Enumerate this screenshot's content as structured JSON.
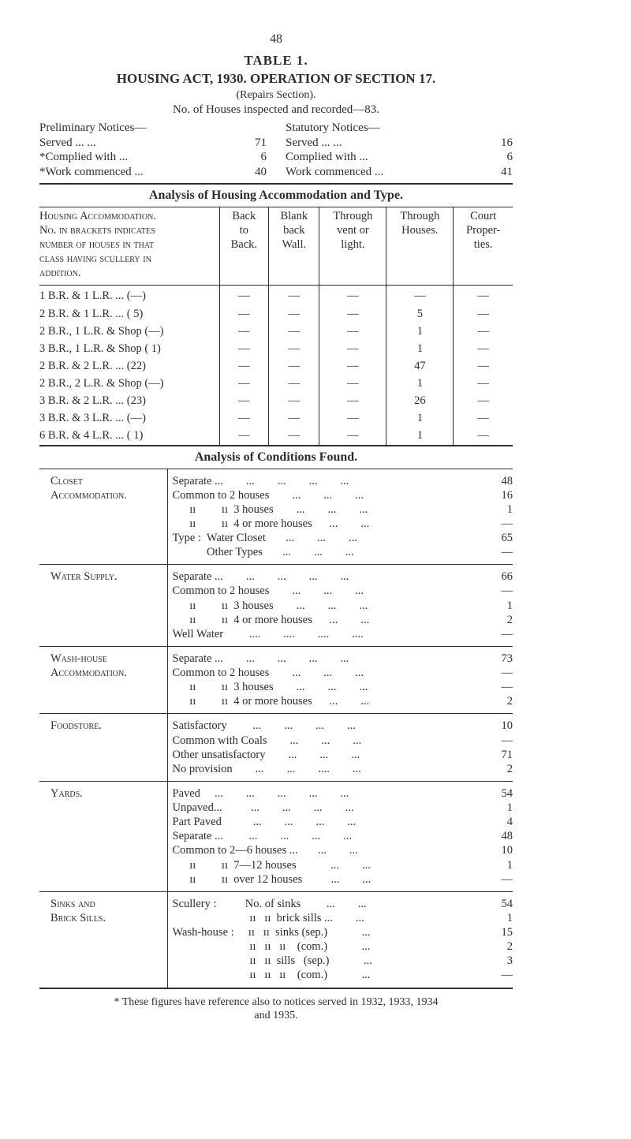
{
  "page_number": "48",
  "title_line1": "TABLE 1.",
  "title_line2": "HOUSING ACT, 1930.  OPERATION OF SECTION 17.",
  "title_line3": "(Repairs Section).",
  "title_line4": "No. of Houses inspected and recorded—83.",
  "prelim": {
    "header": "Preliminary Notices—",
    "rows": [
      {
        "label": "Served           ...      ...",
        "val": "71"
      },
      {
        "label": "*Complied with             ...",
        "val": "6"
      },
      {
        "label": "*Work commenced      ...",
        "val": "40"
      }
    ]
  },
  "stat": {
    "header": "Statutory Notices—",
    "rows": [
      {
        "label": "Served               ...      ...",
        "val": "16"
      },
      {
        "label": "Complied with               ...",
        "val": "6"
      },
      {
        "label": "Work commenced       ...",
        "val": "41"
      }
    ]
  },
  "analysis1_title": "Analysis of Housing Accommodation and Type.",
  "acc_header": {
    "c0": "Housing Accommodation.\nNo. in brackets indicates\nnumber of houses in that\nclass having scullery in\naddition.",
    "c1": "Back\nto\nBack.",
    "c2": "Blank\nback\nWall.",
    "c3": "Through\nvent or\nlight.",
    "c4": "Through\nHouses.",
    "c5": "Court\nProper-\nties."
  },
  "acc_rows": [
    {
      "c0": "1 B.R. & 1 L.R.     ...   (—)",
      "c1": "—",
      "c2": "—",
      "c3": "—",
      "c4": "—",
      "c5": "—"
    },
    {
      "c0": "2 B.R. & 1 L.R.     ...   ( 5)",
      "c1": "—",
      "c2": "—",
      "c3": "—",
      "c4": "5",
      "c5": "—"
    },
    {
      "c0": "2 B.R., 1 L.R. & Shop (—)",
      "c1": "—",
      "c2": "—",
      "c3": "—",
      "c4": "1",
      "c5": "—"
    },
    {
      "c0": "3 B.R., 1 L.R. & Shop ( 1)",
      "c1": "—",
      "c2": "—",
      "c3": "—",
      "c4": "1",
      "c5": "—"
    },
    {
      "c0": "2 B.R. & 2 L.R.     ...   (22)",
      "c1": "—",
      "c2": "—",
      "c3": "—",
      "c4": "47",
      "c5": "—"
    },
    {
      "c0": "2 B.R., 2 L.R. & Shop (—)",
      "c1": "—",
      "c2": "—",
      "c3": "—",
      "c4": "1",
      "c5": "—"
    },
    {
      "c0": "3 B.R. & 2 L.R.     ...   (23)",
      "c1": "—",
      "c2": "—",
      "c3": "—",
      "c4": "26",
      "c5": "—"
    },
    {
      "c0": "3 B.R. & 3 L.R.    ...   (—)",
      "c1": "—",
      "c2": "—",
      "c3": "—",
      "c4": "1",
      "c5": "—"
    },
    {
      "c0": "6 B.R. & 4 L.R.     ...   ( 1)",
      "c1": "—",
      "c2": "—",
      "c3": "—",
      "c4": "1",
      "c5": "—"
    }
  ],
  "analysis2_title": "Analysis of Conditions Found.",
  "cond": [
    {
      "label": "Closet\nAccommodation.",
      "lines": [
        {
          "t": "Separate ...        ...        ...        ...        ...",
          "v": "48"
        },
        {
          "t": "Common to 2 houses        ...        ...        ...",
          "v": "16"
        },
        {
          "t": "      ıı         ıı  3 houses        ...        ...        ...",
          "v": "1"
        },
        {
          "t": "      ıı         ıı  4 or more houses      ...        ...",
          "v": "—"
        },
        {
          "t": "Type :  Water Closet       ...        ...        ...",
          "v": "65"
        },
        {
          "t": "            Other Types       ...        ...        ...",
          "v": "—"
        }
      ]
    },
    {
      "label": "Water Supply.",
      "lines": [
        {
          "t": "Separate ...        ...        ...        ...        ...",
          "v": "66"
        },
        {
          "t": "Common to 2 houses        ...        ...        ...",
          "v": "—"
        },
        {
          "t": "      ıı         ıı  3 houses        ...        ...        ...",
          "v": "1"
        },
        {
          "t": "      ıı         ıı  4 or more houses      ...        ...",
          "v": "2"
        },
        {
          "t": "Well Water         ....        ....        ....        ....",
          "v": "—"
        }
      ]
    },
    {
      "label": "Wash-house\nAccommodation.",
      "lines": [
        {
          "t": "Separate ...        ...        ...        ...        ...",
          "v": "73"
        },
        {
          "t": "Common to 2 houses        ...        ...        ...",
          "v": "—"
        },
        {
          "t": "      ıı         ıı  3 houses        ...        ...        ...",
          "v": "—"
        },
        {
          "t": "      ıı         ıı  4 or more houses      ...        ...",
          "v": "2"
        }
      ]
    },
    {
      "label": "Foodstore.",
      "lines": [
        {
          "t": "Satisfactory         ...        ...        ...        ...",
          "v": "10"
        },
        {
          "t": "Common with Coals        ...        ...        ...",
          "v": "—"
        },
        {
          "t": "Other unsatisfactory        ...        ...        ...",
          "v": "71"
        },
        {
          "t": "No provision        ...        ...        ....        ...",
          "v": "2"
        }
      ]
    },
    {
      "label": "Yards.",
      "lines": [
        {
          "t": "Paved     ...        ...        ...        ...        ...",
          "v": "54"
        },
        {
          "t": "Unpaved...          ...        ...        ...        ...",
          "v": "1"
        },
        {
          "t": "Part Paved           ...        ...        ...        ...",
          "v": "4"
        },
        {
          "t": "Separate ...         ...        ...        ...        ...",
          "v": "48"
        },
        {
          "t": "Common to 2—6 houses ...       ...        ...",
          "v": "10"
        },
        {
          "t": "      ıı         ıı  7—12 houses            ...        ...",
          "v": "1"
        },
        {
          "t": "      ıı         ıı  over 12 houses          ...        ...",
          "v": "—"
        }
      ]
    },
    {
      "label": "Sinks and\nBrick Sills.",
      "lines": [
        {
          "t": "Scullery :          No. of sinks         ...        ...",
          "v": "54"
        },
        {
          "t": "                           ıı   ıı  brick sills ...        ...",
          "v": "1"
        },
        {
          "t": "Wash-house :     ıı   ıı  sinks (sep.)            ...",
          "v": "15"
        },
        {
          "t": "                           ıı   ıı   ıı    (com.)            ...",
          "v": "2"
        },
        {
          "t": "                           ıı   ıı  sills   (sep.)            ...",
          "v": "3"
        },
        {
          "t": "                           ıı   ıı   ıı    (com.)            ...",
          "v": "—"
        }
      ]
    }
  ],
  "footnote": "* These figures have reference also to notices served in 1932, 1933, 1934\nand 1935."
}
